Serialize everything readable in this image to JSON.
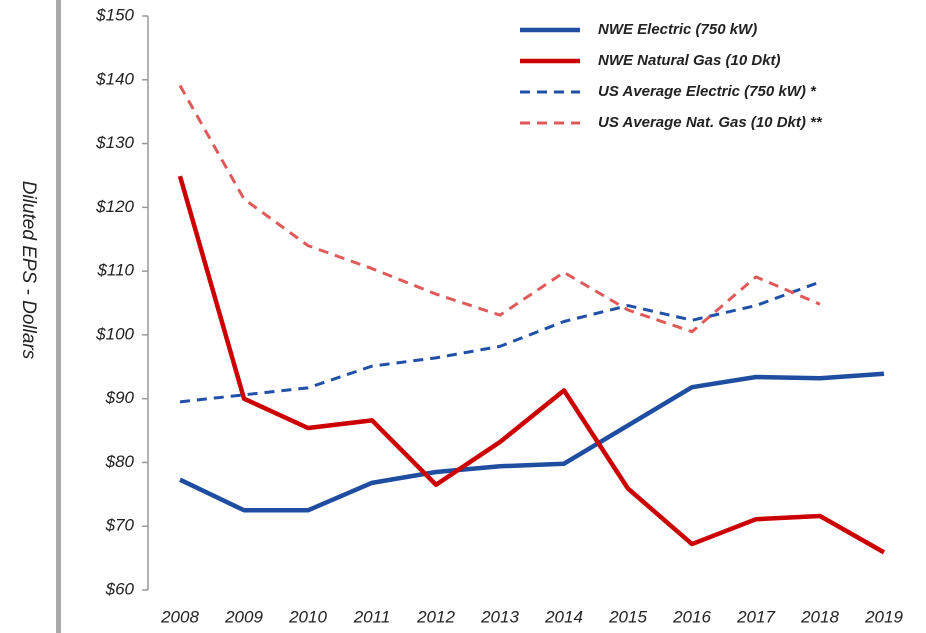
{
  "chart_data": {
    "type": "line",
    "y_label": "Diluted EPS - Dollars",
    "categories": [
      "2008",
      "2009",
      "2010",
      "2011",
      "2012",
      "2013",
      "2014",
      "2015",
      "2016",
      "2017",
      "2018",
      "2019"
    ],
    "series": [
      {
        "name": "NWE Electric (750 kW)",
        "color": "#1f4ea1",
        "dashed": false,
        "values": [
          77.3,
          72.5,
          72.5,
          76.8,
          78.5,
          79.4,
          79.8,
          85.8,
          91.8,
          93.4,
          93.2,
          93.9
        ]
      },
      {
        "name": "NWE Natural Gas (10 Dkt)",
        "color": "#cc0000",
        "dashed": false,
        "values": [
          124.9,
          90.0,
          85.4,
          86.6,
          76.5,
          83.2,
          91.3,
          75.9,
          67.2,
          71.1,
          71.6,
          65.9
        ]
      },
      {
        "name": "US Average Electric (750 kW) *",
        "color": "#2050a8",
        "dashed": true,
        "values": [
          89.5,
          90.6,
          91.7,
          95.1,
          96.4,
          98.2,
          102.1,
          104.6,
          102.3,
          104.6,
          108.3,
          null
        ]
      },
      {
        "name": "US Average Nat. Gas (10 Dkt) **",
        "color": "#e05a5a",
        "dashed": true,
        "values": [
          139.1,
          121.3,
          114.0,
          110.4,
          106.4,
          103.1,
          109.8,
          103.9,
          100.5,
          109.1,
          104.8,
          null
        ]
      }
    ],
    "ylim": [
      60,
      150
    ],
    "yticks": [
      {
        "value": 60,
        "label": "$60"
      },
      {
        "value": 70,
        "label": "$70"
      },
      {
        "value": 80,
        "label": "$80"
      },
      {
        "value": 90,
        "label": "$90"
      },
      {
        "value": 100,
        "label": "$100"
      },
      {
        "value": 110,
        "label": "$110"
      },
      {
        "value": 120,
        "label": "$120"
      },
      {
        "value": 130,
        "label": "$130"
      },
      {
        "value": 140,
        "label": "$140"
      },
      {
        "value": 150,
        "label": "$150"
      }
    ],
    "grid": false
  }
}
